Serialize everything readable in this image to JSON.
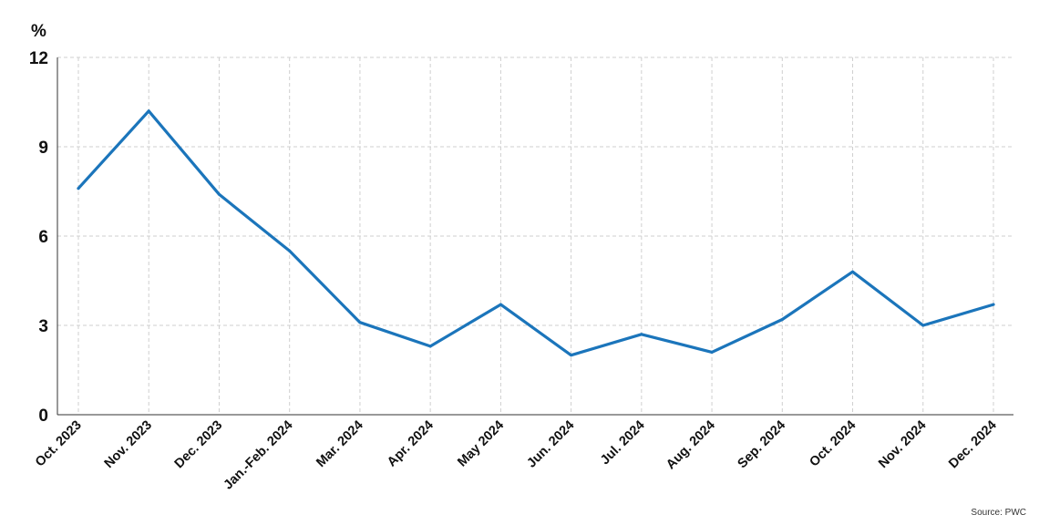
{
  "chart_data": {
    "type": "line",
    "title": "",
    "xlabel": "",
    "ylabel": "%",
    "ylim": [
      0,
      12
    ],
    "yticks": [
      0,
      3,
      6,
      9,
      12
    ],
    "grid": true,
    "legend": "none",
    "categories": [
      "Oct. 2023",
      "Nov. 2023",
      "Dec. 2023",
      "Jan.-Feb. 2024",
      "Mar. 2024",
      "Apr. 2024",
      "May 2024",
      "Jun. 2024",
      "Jul. 2024",
      "Aug. 2024",
      "Sep. 2024",
      "Oct. 2024",
      "Nov. 2024",
      "Dec. 2024"
    ],
    "series": [
      {
        "values": [
          7.6,
          10.2,
          7.4,
          5.5,
          3.1,
          2.3,
          3.7,
          2.0,
          2.7,
          2.1,
          3.2,
          4.8,
          3.0,
          3.7
        ],
        "color": "#1b75bb"
      }
    ],
    "source": "Source: PWC"
  }
}
